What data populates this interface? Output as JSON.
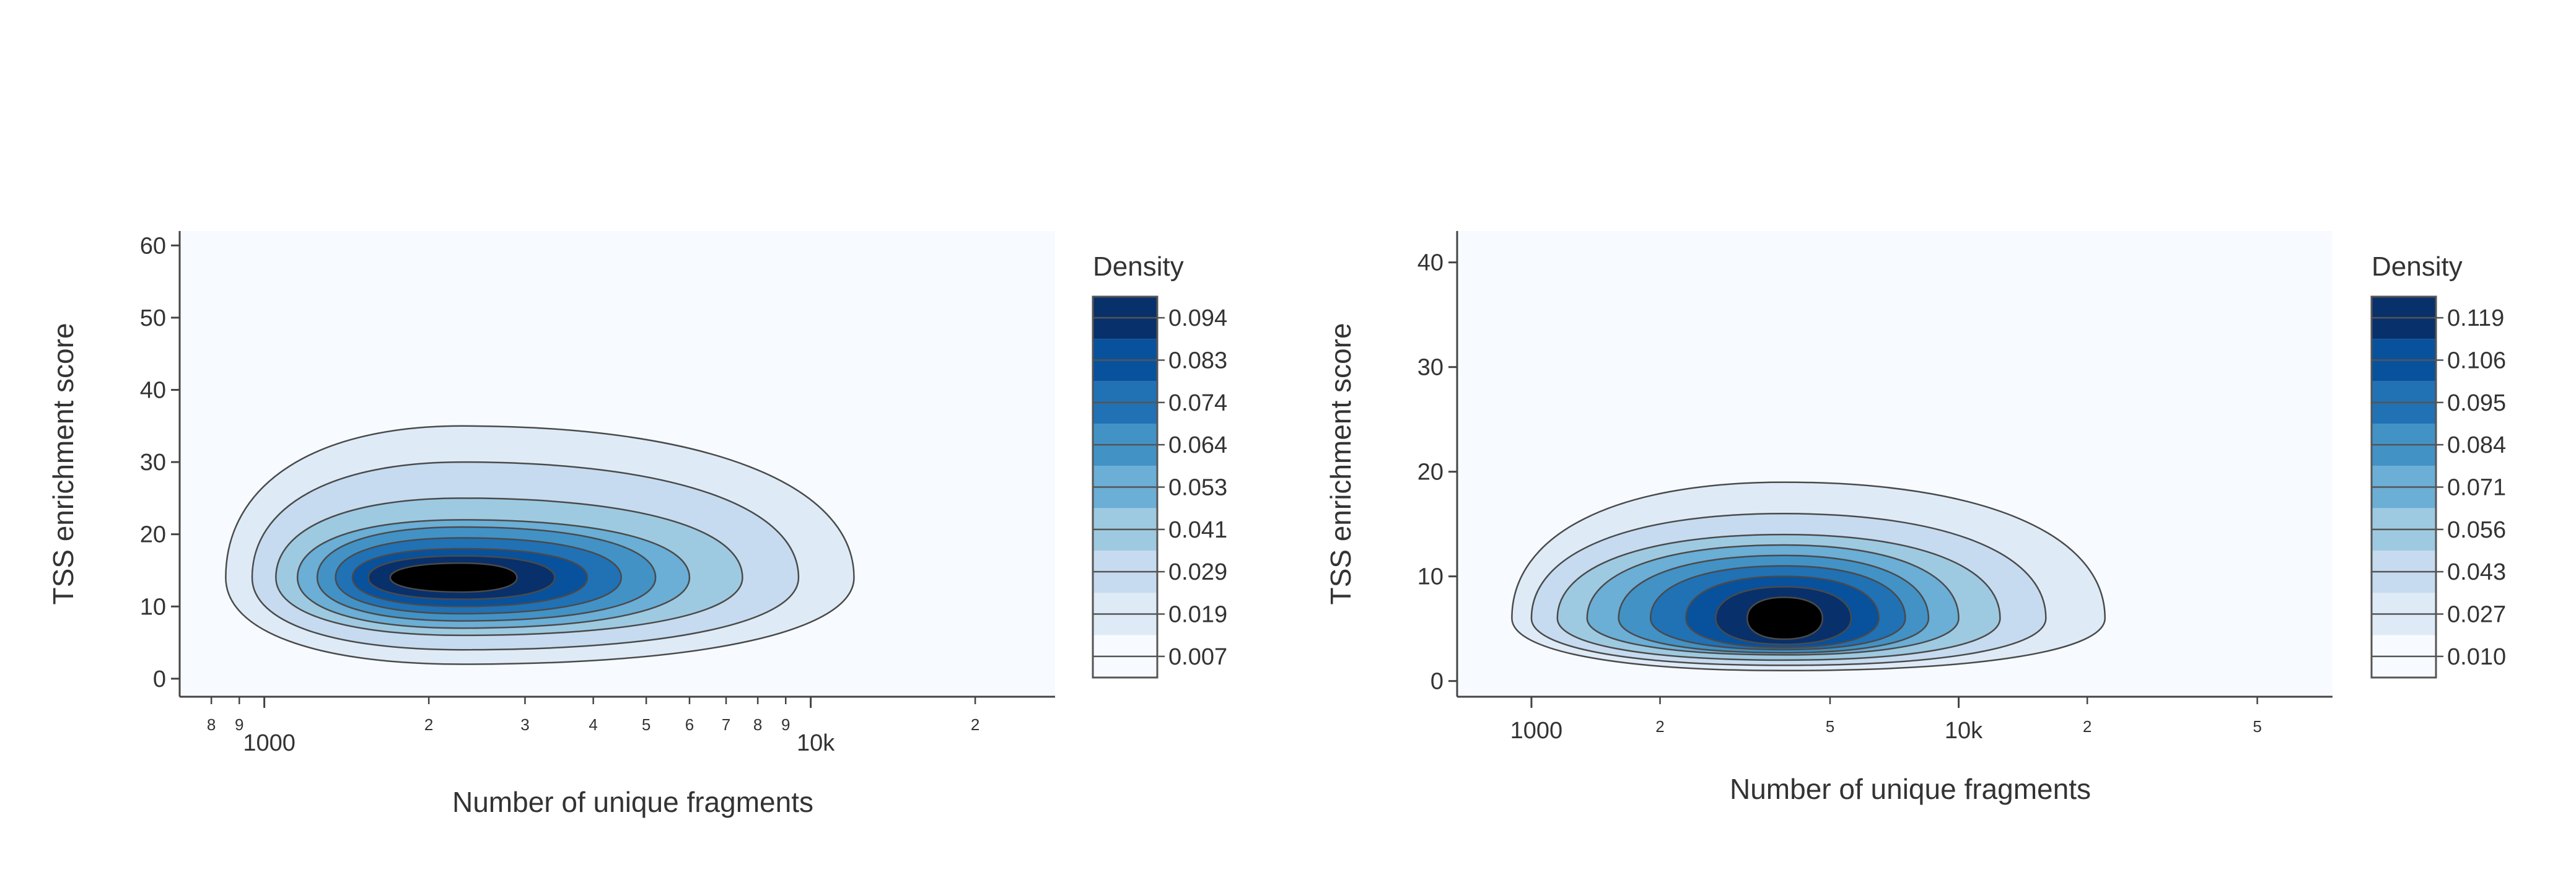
{
  "chart_data": [
    {
      "type": "contour",
      "xlabel": "Number of unique fragments",
      "ylabel": "TSS enrichment score",
      "x_scale": "log",
      "xlim": [
        700,
        28000
      ],
      "ylim": [
        -2.5,
        62
      ],
      "y_ticks": [
        "0",
        "10",
        "20",
        "30",
        "40",
        "50",
        "60"
      ],
      "x_minor_ticks": [
        {
          "value": 800,
          "label": "8"
        },
        {
          "value": 900,
          "label": "9"
        },
        {
          "value": 2000,
          "label": "2"
        },
        {
          "value": 3000,
          "label": "3"
        },
        {
          "value": 4000,
          "label": "4"
        },
        {
          "value": 5000,
          "label": "5"
        },
        {
          "value": 6000,
          "label": "6"
        },
        {
          "value": 7000,
          "label": "7"
        },
        {
          "value": 8000,
          "label": "8"
        },
        {
          "value": 9000,
          "label": "9"
        },
        {
          "value": 20000,
          "label": "2"
        }
      ],
      "x_major_ticks": [
        {
          "value": 1000,
          "label": "1000"
        },
        {
          "value": 10000,
          "label": "10k"
        }
      ],
      "density_peak": {
        "x": 2300,
        "y": 14
      },
      "colorbar": {
        "title": "Density",
        "levels": [
          "0.094",
          "0.083",
          "0.074",
          "0.064",
          "0.053",
          "0.041",
          "0.029",
          "0.019",
          "0.007"
        ]
      },
      "contours": [
        {
          "level": 0.007,
          "x_range": [
            850,
            12000
          ],
          "y_range": [
            2,
            35
          ]
        },
        {
          "level": 0.019,
          "x_range": [
            950,
            9500
          ],
          "y_range": [
            4,
            30
          ]
        },
        {
          "level": 0.029,
          "x_range": [
            1050,
            7500
          ],
          "y_range": [
            6,
            25
          ]
        },
        {
          "level": 0.041,
          "x_range": [
            1150,
            6000
          ],
          "y_range": [
            7,
            22
          ]
        },
        {
          "level": 0.053,
          "x_range": [
            1250,
            5200
          ],
          "y_range": [
            8,
            21
          ]
        },
        {
          "level": 0.064,
          "x_range": [
            1350,
            4500
          ],
          "y_range": [
            9,
            19.5
          ]
        },
        {
          "level": 0.074,
          "x_range": [
            1450,
            3900
          ],
          "y_range": [
            10,
            18
          ]
        },
        {
          "level": 0.083,
          "x_range": [
            1550,
            3400
          ],
          "y_range": [
            11,
            17
          ]
        },
        {
          "level": 0.094,
          "x_range": [
            1700,
            2900
          ],
          "y_range": [
            12,
            16
          ]
        }
      ]
    },
    {
      "type": "contour",
      "xlabel": "Number of unique fragments",
      "ylabel": "TSS enrichment score",
      "x_scale": "log",
      "xlim": [
        670,
        75000
      ],
      "ylim": [
        -1.5,
        43
      ],
      "y_ticks": [
        "0",
        "10",
        "20",
        "30",
        "40"
      ],
      "x_minor_ticks": [
        {
          "value": 2000,
          "label": "2"
        },
        {
          "value": 5000,
          "label": "5"
        },
        {
          "value": 20000,
          "label": "2"
        },
        {
          "value": 50000,
          "label": "5"
        }
      ],
      "x_major_ticks": [
        {
          "value": 1000,
          "label": "1000"
        },
        {
          "value": 10000,
          "label": "10k"
        }
      ],
      "density_peak": {
        "x": 3900,
        "y": 6
      },
      "colorbar": {
        "title": "Density",
        "levels": [
          "0.119",
          "0.106",
          "0.095",
          "0.084",
          "0.071",
          "0.056",
          "0.043",
          "0.027",
          "0.010"
        ]
      },
      "contours": [
        {
          "level": 0.01,
          "x_range": [
            900,
            22000
          ],
          "y_range": [
            1,
            19
          ]
        },
        {
          "level": 0.027,
          "x_range": [
            1000,
            16000
          ],
          "y_range": [
            1.5,
            16
          ]
        },
        {
          "level": 0.043,
          "x_range": [
            1150,
            12500
          ],
          "y_range": [
            2,
            14
          ]
        },
        {
          "level": 0.056,
          "x_range": [
            1350,
            10000
          ],
          "y_range": [
            2.5,
            13
          ]
        },
        {
          "level": 0.071,
          "x_range": [
            1600,
            8500
          ],
          "y_range": [
            2.7,
            12
          ]
        },
        {
          "level": 0.084,
          "x_range": [
            1900,
            7500
          ],
          "y_range": [
            3,
            11
          ]
        },
        {
          "level": 0.095,
          "x_range": [
            2300,
            6500
          ],
          "y_range": [
            3.2,
            10
          ]
        },
        {
          "level": 0.106,
          "x_range": [
            2700,
            5600
          ],
          "y_range": [
            3.5,
            9
          ]
        },
        {
          "level": 0.119,
          "x_range": [
            3200,
            4800
          ],
          "y_range": [
            4,
            8
          ]
        }
      ]
    }
  ]
}
